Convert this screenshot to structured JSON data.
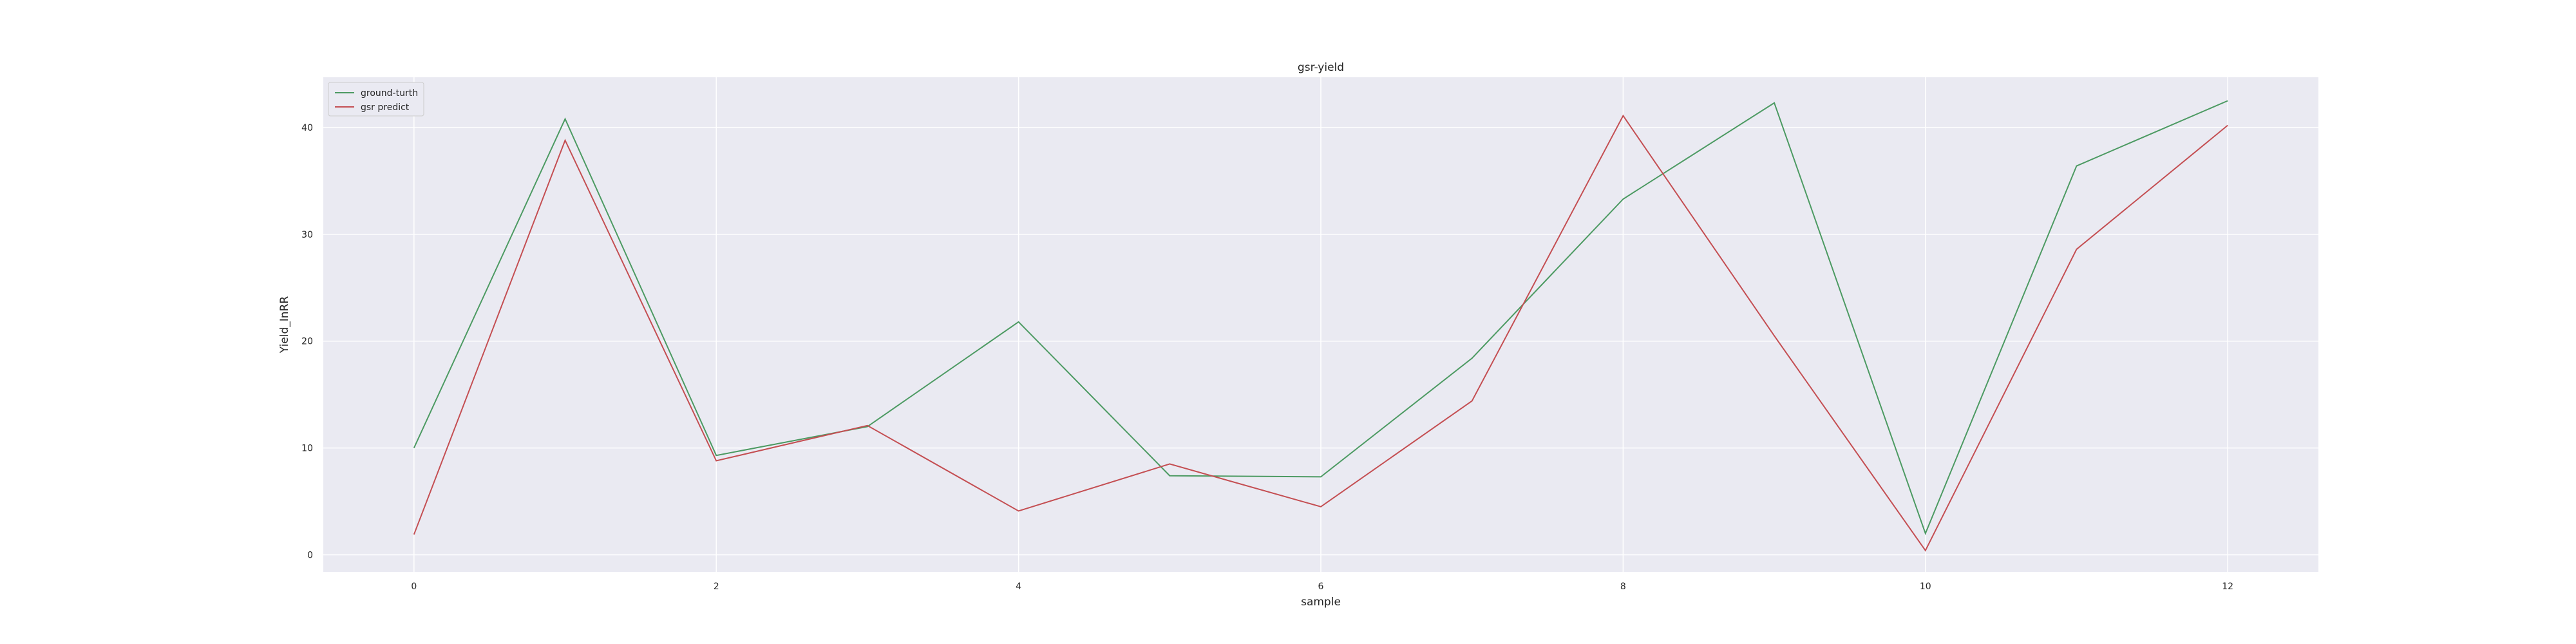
{
  "chart_data": {
    "type": "line",
    "title": "gsr-yield",
    "xlabel": "sample",
    "ylabel": "Yield_InRR",
    "x": [
      0,
      1,
      2,
      3,
      4,
      5,
      6,
      7,
      8,
      9,
      10,
      11,
      12
    ],
    "xlim": [
      -0.6,
      12.6
    ],
    "ylim": [
      -1.6,
      44.7
    ],
    "xticks": [
      "0",
      "2",
      "4",
      "6",
      "8",
      "10",
      "12"
    ],
    "yticks": [
      "0",
      "10",
      "20",
      "30",
      "40"
    ],
    "grid": true,
    "legend_position": "top-left",
    "series": [
      {
        "name": "ground-turth",
        "color": "#4c9a62",
        "values": [
          10.0,
          40.8,
          9.3,
          12.0,
          21.8,
          7.4,
          7.3,
          18.4,
          33.3,
          42.3,
          2.0,
          36.4,
          42.5
        ]
      },
      {
        "name": "gsr predict",
        "color": "#c44e52",
        "values": [
          1.9,
          38.8,
          8.8,
          12.1,
          4.1,
          8.5,
          4.5,
          14.4,
          41.1,
          20.5,
          0.4,
          28.6,
          40.2
        ]
      }
    ]
  }
}
